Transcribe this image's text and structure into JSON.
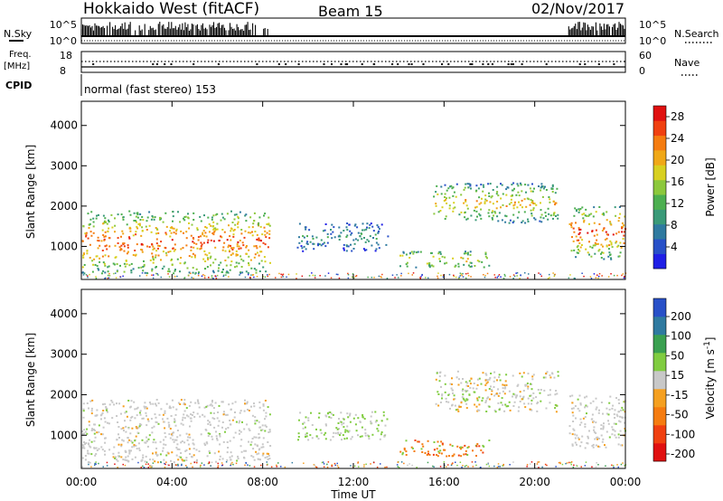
{
  "header": {
    "radar": "Hokkaido West (fitACF)",
    "beam": "Beam 15",
    "date": "02/Nov/2017"
  },
  "top_panels": {
    "nsky_label": "N.Sky",
    "nsky_ticks": [
      "10^5",
      "10^0"
    ],
    "nsearch_label": "N.Search",
    "freq_label_line1": "Freq.",
    "freq_label_line2": "[MHz]",
    "freq_ticks": [
      "18",
      "8"
    ],
    "nave_label": "Nave",
    "nave_ticks": [
      "60",
      "0"
    ],
    "cpid_label": "CPID",
    "cpid_value": "normal (fast stereo) 153"
  },
  "chart_data": [
    {
      "type": "heatmap",
      "name": "power-panel",
      "xlabel": "Time UT",
      "ylabel": "Slant Range [km]",
      "x_ticks": [
        "00:00",
        "04:00",
        "08:00",
        "12:00",
        "16:00",
        "20:00",
        "00:00"
      ],
      "x_range_hours": [
        0,
        24
      ],
      "y_ticks": [
        1000,
        2000,
        3000,
        4000
      ],
      "ylim": [
        180,
        4600
      ],
      "colorbar": {
        "label": "Power [dB]",
        "ticks": [
          4,
          8,
          12,
          16,
          20,
          24,
          28
        ],
        "range": [
          0,
          30
        ],
        "colors": [
          "#1f1fe6",
          "#2850c8",
          "#2f7aa0",
          "#3a9a78",
          "#4caf50",
          "#8cc83c",
          "#d8d020",
          "#f0a818",
          "#f57c10",
          "#f04010",
          "#e01010"
        ]
      },
      "regions": [
        {
          "t": [
            0.0,
            8.3
          ],
          "r": [
            350,
            1900
          ],
          "level": "high"
        },
        {
          "t": [
            9.5,
            13.5
          ],
          "r": [
            900,
            1600
          ],
          "level": "low"
        },
        {
          "t": [
            14.0,
            18.0
          ],
          "r": [
            500,
            900
          ],
          "level": "mid"
        },
        {
          "t": [
            15.5,
            21.0
          ],
          "r": [
            1600,
            2600
          ],
          "level": "mid-high"
        },
        {
          "t": [
            21.5,
            24.0
          ],
          "r": [
            700,
            2000
          ],
          "level": "high"
        }
      ]
    },
    {
      "type": "heatmap",
      "name": "velocity-panel",
      "xlabel": "Time UT",
      "ylabel": "Slant Range [km]",
      "x_ticks": [
        "00:00",
        "04:00",
        "08:00",
        "12:00",
        "16:00",
        "20:00",
        "00:00"
      ],
      "x_range_hours": [
        0,
        24
      ],
      "y_ticks": [
        1000,
        2000,
        3000,
        4000
      ],
      "ylim": [
        180,
        4600
      ],
      "colorbar": {
        "label": "Velocity [m s-1]",
        "ticks": [
          200,
          100,
          50,
          15,
          -15,
          -50,
          -100,
          -200
        ],
        "range": [
          -250,
          250
        ],
        "colors": [
          "#e01010",
          "#f04010",
          "#f57c10",
          "#f5a020",
          "#c8c8c8",
          "#80cc40",
          "#3aa050",
          "#2f7aa0",
          "#2850c8"
        ]
      },
      "regions": [
        {
          "t": [
            0.0,
            8.3
          ],
          "r": [
            350,
            1900
          ],
          "level": "ground"
        },
        {
          "t": [
            9.5,
            13.5
          ],
          "r": [
            900,
            1600
          ],
          "level": "positive"
        },
        {
          "t": [
            14.0,
            18.0
          ],
          "r": [
            500,
            900
          ],
          "level": "negative"
        },
        {
          "t": [
            15.5,
            21.0
          ],
          "r": [
            1600,
            2600
          ],
          "level": "mixed"
        },
        {
          "t": [
            21.5,
            24.0
          ],
          "r": [
            700,
            2000
          ],
          "level": "ground"
        }
      ]
    }
  ]
}
